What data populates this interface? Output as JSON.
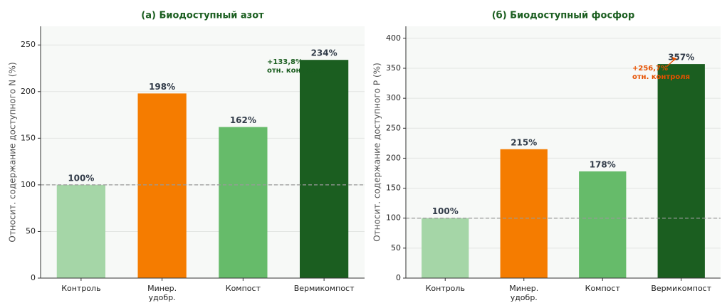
{
  "chart_data": [
    {
      "type": "bar",
      "title": "(а) Биодоступный азот",
      "y_label": "Относит. содержание доступного N (%)",
      "categories": [
        "Контроль",
        "Минер.\nудобр.",
        "Компост",
        "Вермикомпост"
      ],
      "values": [
        100,
        198,
        162,
        234
      ],
      "value_labels": [
        "100%",
        "198%",
        "162%",
        "234%"
      ],
      "colors": [
        "#a5d6a7",
        "#f57c00",
        "#66bb6a",
        "#1b5e20"
      ],
      "ylim": [
        0,
        270
      ],
      "yticks": [
        0,
        50,
        100,
        150,
        200,
        250
      ],
      "grid": true,
      "reference_line": 100,
      "annotation": {
        "text": "+133,8%\nотн. контроля",
        "color": "#1b5e20"
      }
    },
    {
      "type": "bar",
      "title": "(б) Биодоступный фосфор",
      "y_label": "Относит. содержание доступного P (%)",
      "categories": [
        "Контроль",
        "Минер.\nудобр.",
        "Компост",
        "Вермикомпост"
      ],
      "values": [
        100,
        215,
        178,
        357
      ],
      "value_labels": [
        "100%",
        "215%",
        "178%",
        "357%"
      ],
      "colors": [
        "#a5d6a7",
        "#f57c00",
        "#66bb6a",
        "#1b5e20"
      ],
      "ylim": [
        0,
        420
      ],
      "yticks": [
        0,
        50,
        100,
        150,
        200,
        250,
        300,
        350,
        400
      ],
      "grid": true,
      "reference_line": 100,
      "annotation": {
        "text": "+256,7%\nотн. контроля",
        "color": "#e65100"
      }
    }
  ]
}
